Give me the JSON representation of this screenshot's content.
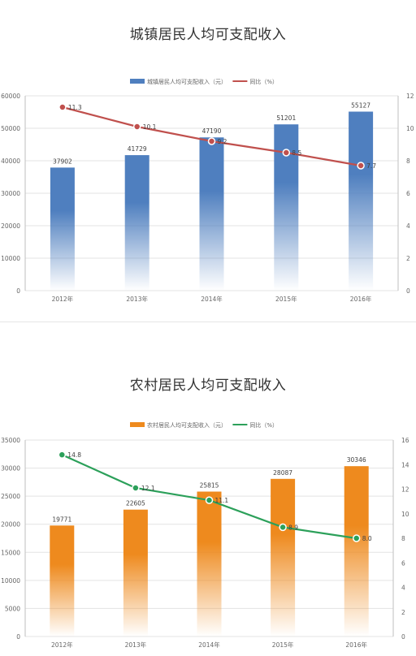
{
  "chart_data": [
    {
      "type": "bar+line",
      "title": "城镇居民人均可支配收入",
      "categories": [
        "2012年",
        "2013年",
        "2014年",
        "2015年",
        "2016年"
      ],
      "series": [
        {
          "name": "城镇居民人均可支配收入（元）",
          "type": "bar",
          "axis": "left",
          "values": [
            37902,
            41729,
            47190,
            51201,
            55127
          ]
        },
        {
          "name": "同比（%）",
          "type": "line",
          "axis": "right",
          "values": [
            11.3,
            10.1,
            9.2,
            8.5,
            7.7
          ]
        }
      ],
      "y_left": {
        "min": 0,
        "max": 60000,
        "ticks": [
          0,
          10000,
          20000,
          30000,
          40000,
          50000,
          60000
        ]
      },
      "y_right": {
        "min": 0,
        "max": 12,
        "ticks": [
          0,
          2,
          4,
          6,
          8,
          10,
          12
        ]
      },
      "colors": {
        "bar": "#4f7fbf",
        "line": "#c0504d"
      },
      "legend": "top-center",
      "grid": true
    },
    {
      "type": "bar+line",
      "title": "农村居民人均可支配收入",
      "categories": [
        "2012年",
        "2013年",
        "2014年",
        "2015年",
        "2016年"
      ],
      "series": [
        {
          "name": "农村居民人均可支配收入（元）",
          "type": "bar",
          "axis": "left",
          "values": [
            19771,
            22605,
            25815,
            28087,
            30346
          ]
        },
        {
          "name": "同比（%）",
          "type": "line",
          "axis": "right",
          "values": [
            14.8,
            12.1,
            11.1,
            8.9,
            8.0
          ]
        }
      ],
      "y_left": {
        "min": 0,
        "max": 35000,
        "ticks": [
          0,
          5000,
          10000,
          15000,
          20000,
          25000,
          30000,
          35000
        ]
      },
      "y_right": {
        "min": 0,
        "max": 16,
        "ticks": [
          0,
          2,
          4,
          6,
          8,
          10,
          12,
          14,
          16
        ]
      },
      "colors": {
        "bar": "#ee8a1e",
        "line": "#2ca05a"
      },
      "legend": "top-center",
      "grid": true
    }
  ]
}
